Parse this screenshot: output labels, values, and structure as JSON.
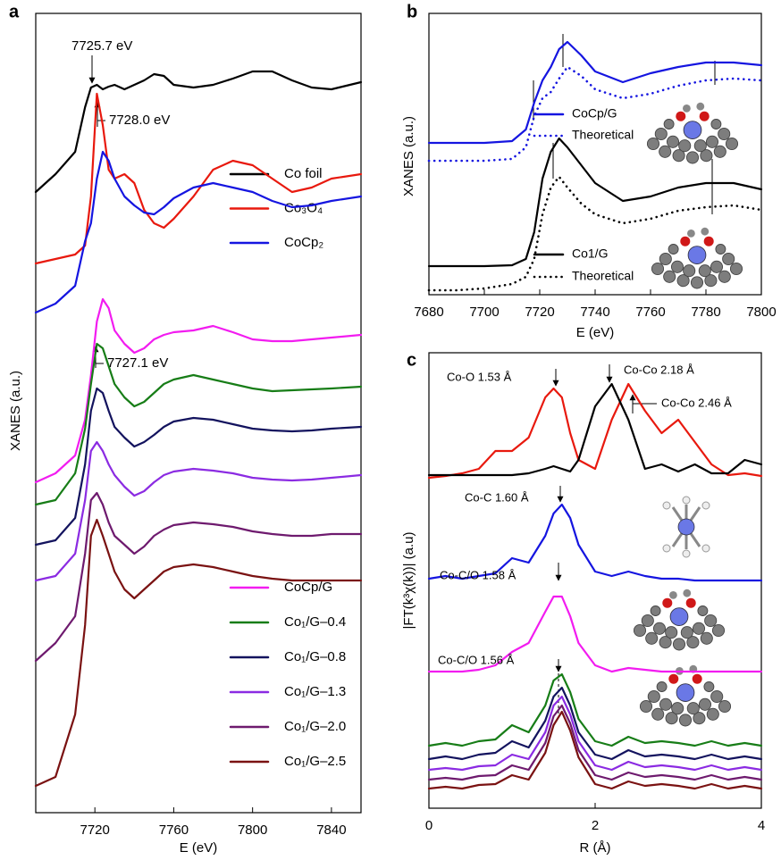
{
  "chart_data": [
    {
      "type": "line",
      "title": "a",
      "x_label": "E (eV)",
      "y_label": "XANES (a.u.)",
      "xlim": [
        7690,
        7855
      ],
      "xticks": [
        7720,
        7760,
        7800,
        7840
      ],
      "ylim": [
        0,
        89.5
      ],
      "x": [
        7690,
        7700,
        7710,
        7715,
        7718,
        7721,
        7724,
        7727,
        7730,
        7735,
        7740,
        7745,
        7750,
        7755,
        7760,
        7770,
        7780,
        7790,
        7800,
        7810,
        7820,
        7830,
        7840,
        7855
      ],
      "series": [
        {
          "name": "Co foil",
          "color": "#000000",
          "values": [
            69.5,
            71.5,
            74,
            79,
            81.2,
            81.5,
            81,
            81.3,
            81.5,
            81,
            81.5,
            82,
            82.7,
            82.5,
            81.5,
            81.2,
            81.5,
            82.2,
            83,
            83,
            82,
            81.2,
            81,
            81.8
          ]
        },
        {
          "name": "Co₃O₄",
          "color": "#e8190e",
          "values": [
            61.5,
            62,
            62.5,
            63.5,
            69,
            80.5,
            77,
            72,
            71,
            71.5,
            70.5,
            67.5,
            66,
            65.5,
            66.5,
            69,
            72,
            73,
            72.5,
            71,
            69.5,
            70,
            71,
            71.5
          ]
        },
        {
          "name": "CoCp₂",
          "color": "#1515e0",
          "values": [
            56,
            57,
            59,
            64,
            66,
            71,
            74,
            73,
            71,
            69,
            68,
            67.2,
            67,
            67.8,
            68.8,
            70,
            70.5,
            70,
            69.5,
            68.5,
            67.8,
            68,
            68.5,
            69
          ]
        },
        {
          "name": "CoCp/G",
          "color": "#f21cf0",
          "values": [
            37,
            38,
            40,
            44,
            49,
            55,
            57.5,
            56.5,
            54,
            52.5,
            51.5,
            52,
            53,
            53.5,
            53.8,
            54,
            54.5,
            53.8,
            53,
            52.8,
            52.8,
            53,
            53.2,
            53.5
          ]
        },
        {
          "name": "Co₁/G–0.4",
          "color": "#177d17",
          "values": [
            34.5,
            35,
            38,
            43,
            48,
            52.5,
            52,
            50,
            48,
            46.5,
            45.5,
            46,
            47,
            48,
            48.5,
            49,
            48.5,
            48,
            47.5,
            47.2,
            47.3,
            47.4,
            47.5,
            47.7
          ]
        },
        {
          "name": "Co₁/G–0.8",
          "color": "#13135e",
          "values": [
            30,
            30.5,
            33,
            39,
            45,
            47.5,
            47,
            45,
            43.2,
            42,
            41,
            41.5,
            42.3,
            43.2,
            43.8,
            44.2,
            44,
            43.5,
            43,
            42.8,
            42.7,
            42.8,
            43,
            43.2
          ]
        },
        {
          "name": "Co₁/G–1.3",
          "color": "#8b2be2",
          "values": [
            26,
            26.5,
            29,
            35,
            40.5,
            41.5,
            40.5,
            39,
            37.8,
            36.5,
            35.5,
            36,
            37,
            37.8,
            38.2,
            38.5,
            38.3,
            38,
            37.5,
            37.3,
            37.2,
            37.3,
            37.5,
            37.8
          ]
        },
        {
          "name": "Co₁/G–2.0",
          "color": "#6e1a6e",
          "values": [
            17,
            19,
            22,
            29,
            35,
            35.8,
            34.5,
            32.5,
            31,
            30,
            29,
            29.8,
            31,
            31.7,
            32.2,
            32.5,
            32.3,
            32,
            31.5,
            31.2,
            31,
            31,
            31.2,
            31.2
          ]
        },
        {
          "name": "Co₁/G–2.5",
          "color": "#7a1212",
          "values": [
            3,
            4,
            11,
            21,
            31,
            32.8,
            31,
            29,
            27,
            25,
            24,
            25,
            26,
            27,
            27.5,
            27.8,
            27.5,
            27,
            26.5,
            26.2,
            26,
            26,
            26,
            26
          ]
        }
      ],
      "annotations": [
        "7725.7 eV",
        "7728.0 eV",
        "7727.1 eV"
      ]
    },
    {
      "type": "line",
      "title": "b",
      "x_label": "E (eV)",
      "y_label": "XANES (a.u.)",
      "xlim": [
        7680,
        7800
      ],
      "xticks": [
        7680,
        7700,
        7720,
        7740,
        7760,
        7780,
        7800
      ],
      "ylim": [
        0,
        31.5
      ],
      "x": [
        7680,
        7690,
        7700,
        7710,
        7715,
        7718,
        7721,
        7724,
        7727,
        7730,
        7735,
        7740,
        7750,
        7760,
        7770,
        7780,
        7790,
        7800
      ],
      "series": [
        {
          "name": "CoCp/G",
          "color": "#1515e0",
          "style": "solid",
          "values": [
            17,
            17,
            17,
            17.2,
            18.5,
            21.5,
            24,
            25.5,
            27.5,
            28.3,
            26.8,
            25,
            23.8,
            24.8,
            25.5,
            26,
            26,
            25.7
          ]
        },
        {
          "name": "Theoretical",
          "color": "#1515e0",
          "style": "dotted",
          "values": [
            15,
            15,
            15,
            15.2,
            16.5,
            20,
            22,
            22.7,
            24.2,
            25.5,
            24.5,
            23,
            22,
            22.5,
            23.4,
            24,
            24.2,
            24
          ]
        },
        {
          "name": "Co1/G",
          "color": "#000000",
          "style": "solid",
          "values": [
            3.2,
            3.2,
            3.2,
            3.3,
            4,
            7,
            13,
            16,
            17.5,
            16.5,
            14.5,
            12.5,
            10.5,
            11,
            12,
            12.5,
            12.5,
            11.8
          ]
        },
        {
          "name": "Theoretical",
          "color": "#000000",
          "style": "dotted",
          "values": [
            0.5,
            0.5,
            0.7,
            1.2,
            2,
            4,
            9,
            12,
            13.2,
            12,
            10.2,
            9,
            8,
            8.5,
            9.4,
            9.8,
            10,
            9.5
          ]
        }
      ]
    },
    {
      "type": "line",
      "title": "c",
      "x_label": "R (Å)",
      "y_label": "|FT(k³χ(k))| (a.u)",
      "xlim": [
        0,
        4
      ],
      "xticks": [
        0,
        2,
        4
      ],
      "ylim": [
        0,
        51
      ],
      "x": [
        0,
        0.2,
        0.4,
        0.6,
        0.8,
        1.0,
        1.2,
        1.4,
        1.5,
        1.6,
        1.7,
        1.8,
        2.0,
        2.2,
        2.4,
        2.6,
        2.8,
        3.0,
        3.2,
        3.4,
        3.6,
        3.8,
        4.0
      ],
      "series": [
        {
          "color": "#e8190e",
          "values": [
            37,
            37.2,
            37.5,
            38,
            40,
            40,
            41.5,
            46,
            47,
            46,
            42,
            39,
            38,
            43.5,
            47.5,
            44.5,
            42,
            43.5,
            41,
            38.5,
            37.3,
            37.5,
            37.2
          ]
        },
        {
          "color": "#000000",
          "values": [
            37.3,
            37.3,
            37.3,
            37.3,
            37.3,
            37.3,
            37.5,
            38,
            38.3,
            38,
            37.7,
            39,
            45,
            47.5,
            43.5,
            38,
            38.5,
            37.7,
            38.5,
            37.5,
            37.5,
            39,
            38.5
          ]
        },
        {
          "color": "#1515e0",
          "values": [
            25.7,
            26,
            25.7,
            26,
            26.3,
            28,
            27.5,
            30.5,
            33,
            34,
            32.5,
            29.5,
            26.5,
            26,
            26.5,
            26,
            25.7,
            25.7,
            25.5,
            25.5,
            25.5,
            25.5,
            25.5
          ]
        },
        {
          "color": "#f21cf0",
          "values": [
            15.3,
            15.3,
            15.3,
            15.5,
            16,
            17.5,
            18.5,
            22,
            23.7,
            23.7,
            21.5,
            18.5,
            16,
            15.3,
            15.7,
            15.5,
            15.3,
            15.3,
            15.3,
            15.3,
            15.3,
            15.3,
            15.3
          ]
        },
        {
          "color": "#177d17",
          "values": [
            7,
            7.3,
            7,
            7.5,
            7.7,
            9.3,
            8.5,
            11.5,
            14.3,
            15,
            13,
            10,
            7.5,
            7,
            8,
            7.3,
            7.5,
            7.3,
            7,
            7.5,
            7,
            7.3,
            7
          ]
        },
        {
          "color": "#13135e",
          "values": [
            5.5,
            5.8,
            5.5,
            6,
            6.2,
            7.5,
            6.8,
            9.8,
            12.5,
            13.5,
            11.5,
            8.5,
            6,
            5.5,
            6.5,
            5.8,
            6,
            5.8,
            5.5,
            6,
            5.5,
            5.8,
            5.5
          ]
        },
        {
          "color": "#8b2be2",
          "values": [
            4.3,
            4.5,
            4.3,
            4.7,
            4.8,
            6,
            5.5,
            8.5,
            11.5,
            12.5,
            10.5,
            7.5,
            4.8,
            4.3,
            5.2,
            4.6,
            4.8,
            4.6,
            4.3,
            4.8,
            4.3,
            4.6,
            4.3
          ]
        },
        {
          "color": "#6e1a6e",
          "values": [
            3.2,
            3.4,
            3.2,
            3.6,
            3.7,
            4.8,
            4.3,
            7.3,
            10.3,
            11.5,
            9.5,
            6.5,
            3.7,
            3.2,
            4,
            3.5,
            3.7,
            3.5,
            3.2,
            3.7,
            3.2,
            3.5,
            3.2
          ]
        },
        {
          "color": "#7a1212",
          "values": [
            2.2,
            2.4,
            2.2,
            2.6,
            2.7,
            3.7,
            3.2,
            6.2,
            9.3,
            10.8,
            8.7,
            5.7,
            2.7,
            2.2,
            3,
            2.5,
            2.7,
            2.5,
            2.2,
            2.7,
            2.2,
            2.5,
            2.2
          ]
        }
      ],
      "annotations": [
        "Co-O 1.53 Å",
        "Co-Co 2.18 Å",
        "Co-Co 2.46 Å",
        "Co-C 1.60 Å",
        "Co-C/O 1.58 Å",
        "Co-C/O 1.56 Å"
      ]
    }
  ]
}
